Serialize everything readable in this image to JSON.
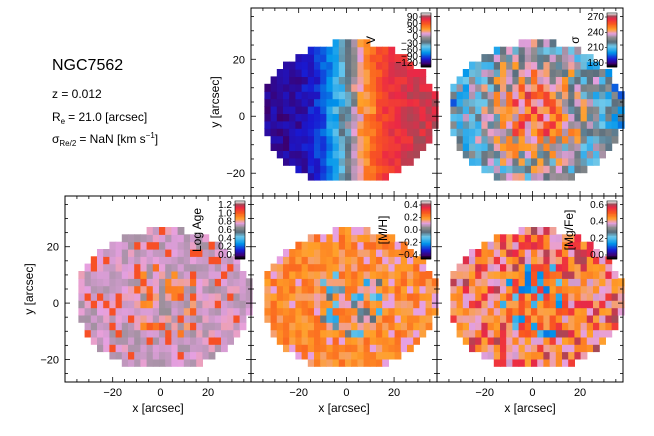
{
  "header": {
    "galaxy_name": "NGC7562",
    "redshift": "z = 0.012",
    "re_text": "= 21.0 [arcsec]",
    "re_symbol": "R",
    "re_sub": "e",
    "sigma_symbol": "σ",
    "sigma_sub": "Re/2",
    "sigma_text": "= NaN [km s",
    "sigma_sup": "−1",
    "sigma_close": "]"
  },
  "chart_data": [
    {
      "type": "heatmap",
      "name": "velocity-map",
      "colorbar_label": "V",
      "colorbar_ticks": [
        "90",
        "60",
        "30",
        "0",
        "−30",
        "−60",
        "−90",
        "−120"
      ],
      "colorbar_range": [
        -130,
        100
      ],
      "ylabel": "y [arcsec]",
      "xlabel": "",
      "y_ticks": [
        "20",
        "0",
        "−20"
      ],
      "x_ticks": [],
      "xlim": [
        -40,
        38
      ],
      "ylim": [
        -28,
        38
      ],
      "colormap": "sauron"
    },
    {
      "type": "heatmap",
      "name": "sigma-map",
      "colorbar_label": "σ",
      "colorbar_ticks": [
        "270",
        "240",
        "210",
        "180"
      ],
      "colorbar_range": [
        170,
        290
      ],
      "ylabel": "",
      "xlabel": "",
      "y_ticks": [],
      "x_ticks": [],
      "xlim": [
        -40,
        38
      ],
      "ylim": [
        -28,
        38
      ],
      "colormap": "sauron"
    },
    {
      "type": "heatmap",
      "name": "age-map",
      "colorbar_label": "Log Age",
      "colorbar_ticks": [
        "1.2",
        "1.0",
        "0.8",
        "0.6",
        "0.4",
        "0.2",
        "0.0"
      ],
      "colorbar_range": [
        -0.05,
        1.3
      ],
      "ylabel": "y [arcsec]",
      "xlabel": "x [arcsec]",
      "y_ticks": [
        "20",
        "0",
        "−20"
      ],
      "x_ticks": [
        "−20",
        "0",
        "20"
      ],
      "xlim": [
        -40,
        38
      ],
      "ylim": [
        -28,
        38
      ],
      "colormap": "sauron"
    },
    {
      "type": "heatmap",
      "name": "metallicity-map",
      "colorbar_label": "[M/H]",
      "colorbar_ticks": [
        "0.4",
        "0.2",
        "0.0",
        "−0.2",
        "−0.4"
      ],
      "colorbar_range": [
        -0.5,
        0.45
      ],
      "ylabel": "",
      "xlabel": "x [arcsec]",
      "y_ticks": [],
      "x_ticks": [
        "−20",
        "0",
        "20"
      ],
      "xlim": [
        -40,
        38
      ],
      "ylim": [
        -28,
        38
      ],
      "colormap": "sauron"
    },
    {
      "type": "heatmap",
      "name": "alpha-map",
      "colorbar_label": "[Mg/Fe]",
      "colorbar_ticks": [
        "0.6",
        "0.4",
        "0.2",
        "0.0"
      ],
      "colorbar_range": [
        -0.1,
        0.7
      ],
      "ylabel": "",
      "xlabel": "x [arcsec]",
      "y_ticks": [],
      "x_ticks": [
        "−20",
        "0",
        "20"
      ],
      "xlim": [
        -40,
        38
      ],
      "ylim": [
        -28,
        38
      ],
      "colormap": "sauron"
    }
  ]
}
